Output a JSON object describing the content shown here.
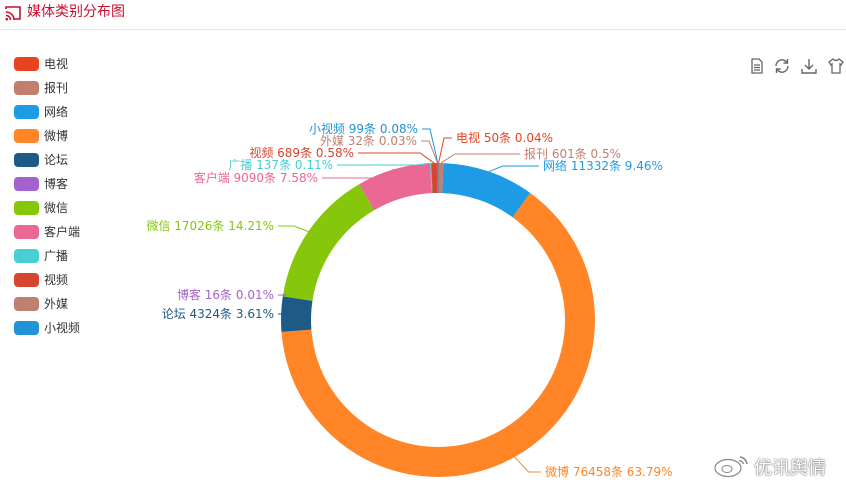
{
  "header": {
    "title": "媒体类别分布图"
  },
  "toolbox": {
    "icons": [
      "data-view-icon",
      "restore-icon",
      "save-image-icon",
      "shirt-icon"
    ]
  },
  "watermark": {
    "text": "优讯舆情"
  },
  "chart_data": {
    "type": "pie",
    "variant": "donut",
    "title": "媒体类别分布图",
    "legend_position": "left",
    "unit": "条",
    "slices": [
      {
        "name": "电视",
        "value": 50,
        "percent": "0.04%",
        "color": "#e8431f"
      },
      {
        "name": "报刊",
        "value": 601,
        "percent": "0.5%",
        "color": "#c47e6e"
      },
      {
        "name": "网络",
        "value": 11332,
        "percent": "9.46%",
        "color": "#1e9be5"
      },
      {
        "name": "微博",
        "value": 76458,
        "percent": "63.79%",
        "color": "#ff8526"
      },
      {
        "name": "论坛",
        "value": 4324,
        "percent": "3.61%",
        "color": "#1d5a85"
      },
      {
        "name": "博客",
        "value": 16,
        "percent": "0.01%",
        "color": "#a463cc"
      },
      {
        "name": "微信",
        "value": 17026,
        "percent": "14.21%",
        "color": "#86c70c"
      },
      {
        "name": "客户端",
        "value": 9090,
        "percent": "7.58%",
        "color": "#eb6794"
      },
      {
        "name": "广播",
        "value": 137,
        "percent": "0.11%",
        "color": "#47cfd4"
      },
      {
        "name": "视频",
        "value": 689,
        "percent": "0.58%",
        "color": "#d8452e"
      },
      {
        "name": "外媒",
        "value": 32,
        "percent": "0.03%",
        "color": "#bf8070"
      },
      {
        "name": "小视频",
        "value": 99,
        "percent": "0.08%",
        "color": "#2193d6"
      }
    ]
  }
}
